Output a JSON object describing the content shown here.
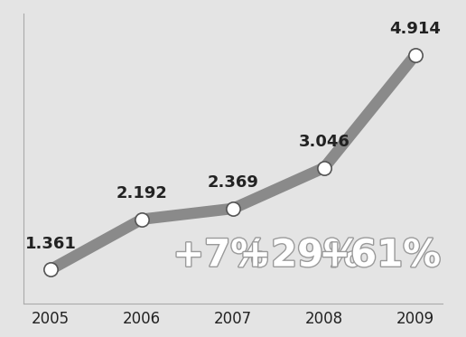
{
  "chart_data": {
    "type": "line",
    "categories": [
      "2005",
      "2006",
      "2007",
      "2008",
      "2009"
    ],
    "values": [
      1.361,
      2.192,
      2.369,
      3.046,
      4.914
    ],
    "color": "#8a8a8a",
    "marker": "o",
    "data_labels": true,
    "tick_labels": "x",
    "ylim": [
      0.8,
      5.6
    ],
    "yticks": [],
    "annotations": [
      "+7%",
      "+29%",
      "+61%"
    ]
  }
}
